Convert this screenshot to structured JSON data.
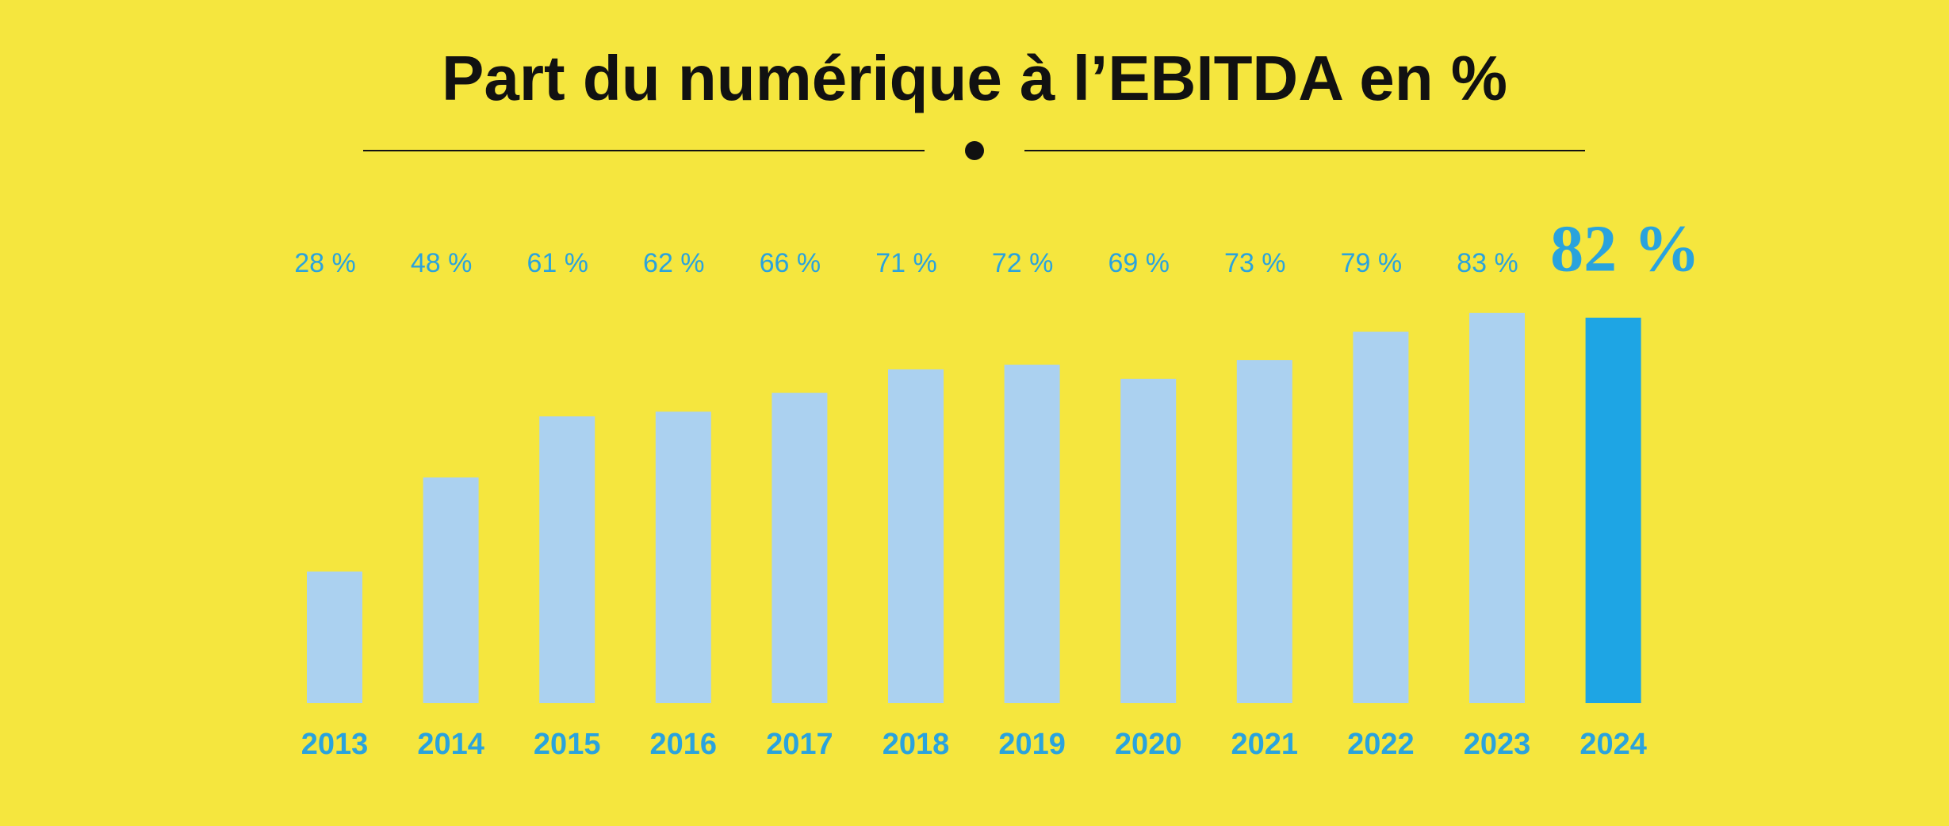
{
  "chart_data": {
    "type": "bar",
    "title": "Part du numérique à l’EBITDA en %",
    "categories": [
      "2013",
      "2014",
      "2015",
      "2016",
      "2017",
      "2018",
      "2019",
      "2020",
      "2021",
      "2022",
      "2023",
      "2024"
    ],
    "values": [
      28,
      48,
      61,
      62,
      66,
      71,
      72,
      69,
      73,
      79,
      83,
      82
    ],
    "value_labels": [
      "28 %",
      "48 %",
      "61 %",
      "62 %",
      "66 %",
      "71 %",
      "72 %",
      "69 %",
      "73 %",
      "79 %",
      "83 %",
      "82 %"
    ],
    "colors": [
      "#abd1f0",
      "#abd1f0",
      "#abd1f0",
      "#abd1f0",
      "#abd1f0",
      "#abd1f0",
      "#abd1f0",
      "#abd1f0",
      "#abd1f0",
      "#abd1f0",
      "#abd1f0",
      "#1ea5e4"
    ],
    "ylim": [
      0,
      100
    ]
  }
}
